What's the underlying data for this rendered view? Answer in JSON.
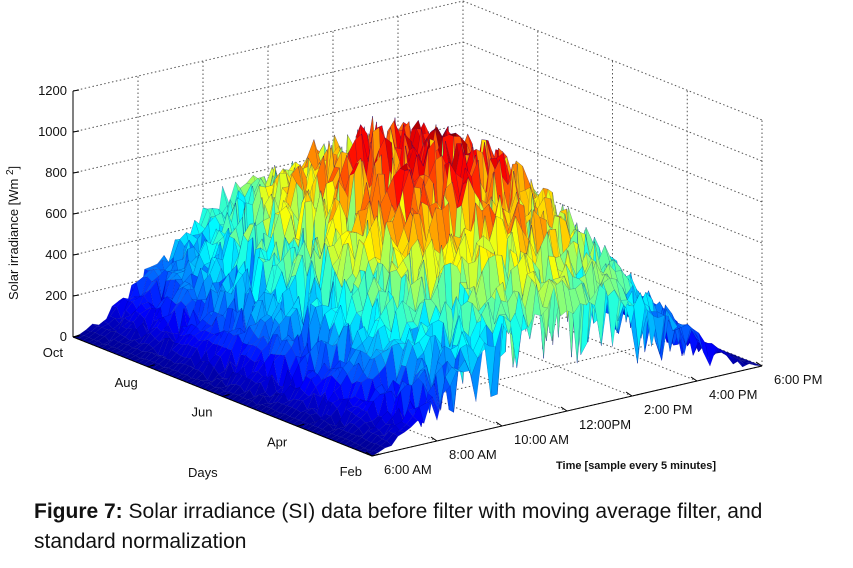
{
  "chart_data": {
    "type": "surface",
    "z_axis": {
      "label": "Solar irradiance [Wm ",
      "label_superscript": "2",
      "label_close": "]",
      "ticks": [
        0,
        200,
        400,
        600,
        800,
        1000,
        1200
      ],
      "range": [
        0,
        1200
      ]
    },
    "days_axis": {
      "label": "Days",
      "ticks": [
        "Feb",
        "Apr",
        "Jun",
        "Aug",
        "Oct"
      ]
    },
    "time_axis": {
      "note": "Time [sample every 5 minutes]",
      "ticks": [
        "6:00 AM",
        "8:00 AM",
        "10:00 AM",
        "12:00PM",
        "2:00 PM",
        "4:00 PM",
        "6:00 PM"
      ]
    },
    "colormap": [
      "#00008f",
      "#0000ff",
      "#0080ff",
      "#00ffff",
      "#80ff80",
      "#ffff00",
      "#ff8000",
      "#ff0000",
      "#800000"
    ],
    "grid": true
  },
  "caption": {
    "label": "Figure 7:",
    "text": " Solar irradiance (SI) data before filter with moving average filter, and standard normalization"
  }
}
